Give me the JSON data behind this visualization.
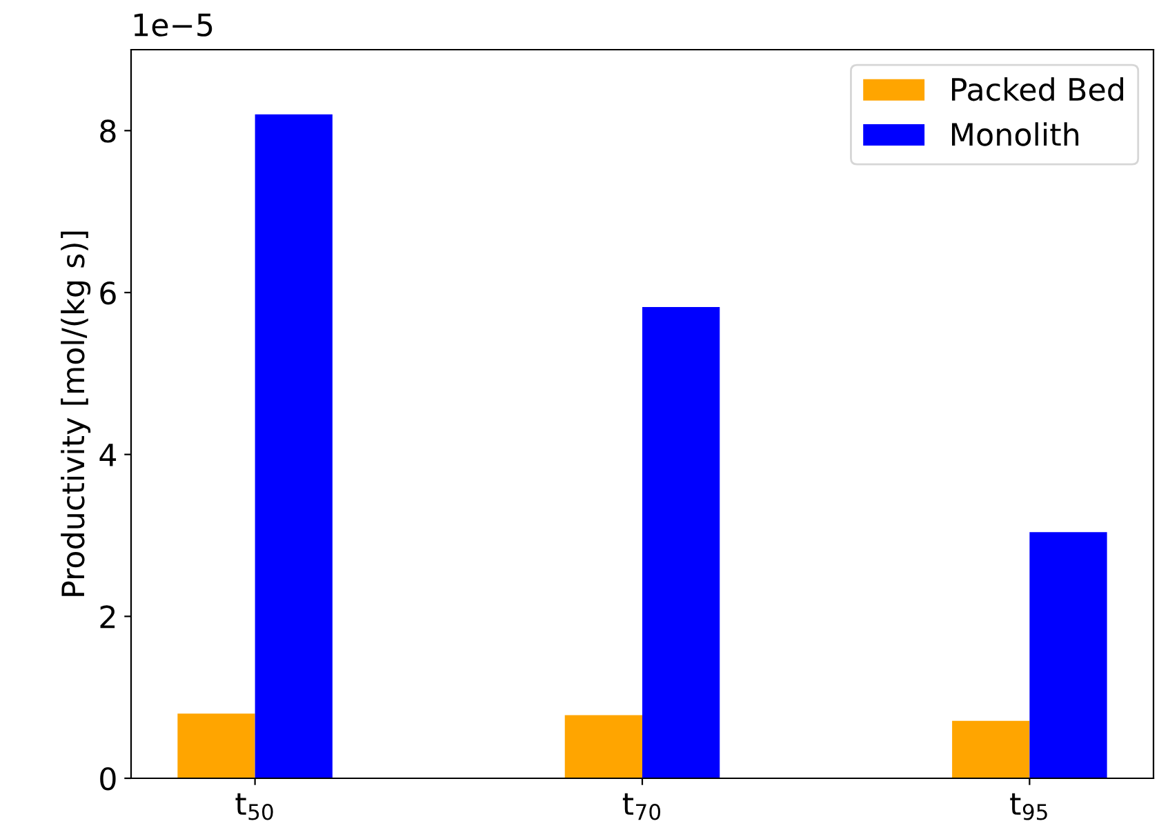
{
  "chart_data": {
    "type": "bar",
    "categories": [
      "t$_{50}$",
      "t$_{70}$",
      "t$_{95}$"
    ],
    "series": [
      {
        "name": "Packed Bed",
        "color": "#ffa500",
        "values": [
          0.8,
          0.78,
          0.71
        ]
      },
      {
        "name": "Monolith",
        "color": "#0000ff",
        "values": [
          8.2,
          5.82,
          3.04
        ]
      }
    ],
    "ylabel": "Productivity [mol/(kg s)]",
    "ylim": [
      0,
      9
    ],
    "yticks": [
      0,
      2,
      4,
      6,
      8
    ],
    "annotations": [
      "1e−5"
    ],
    "grid": false,
    "legend": "top right"
  }
}
